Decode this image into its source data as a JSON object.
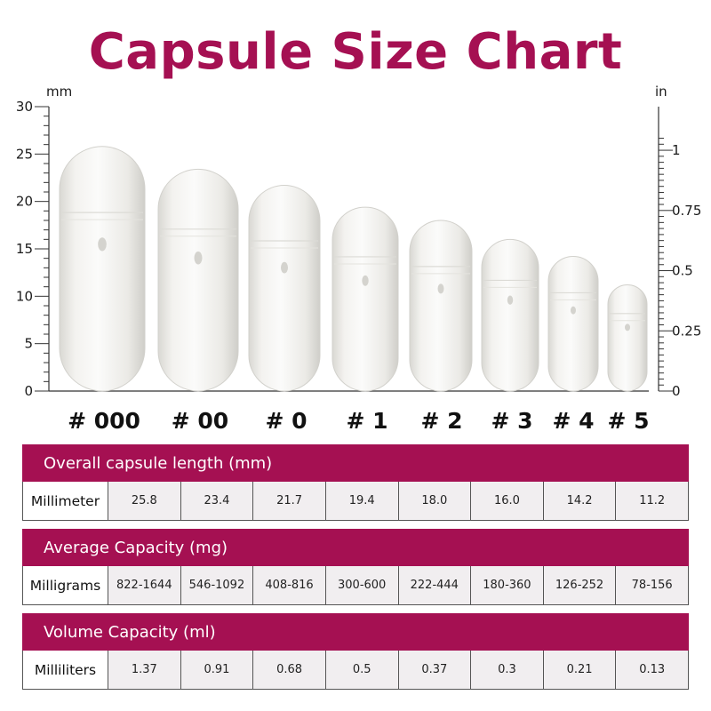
{
  "title": "Capsule Size Chart",
  "colors": {
    "accent": "#a51052",
    "capsule": "#f0efec",
    "cell_bg": "#f1eef0"
  },
  "chart_data": {
    "type": "bar",
    "categories": [
      "# 000",
      "# 00",
      "# 0",
      "# 1",
      "# 2",
      "# 3",
      "# 4",
      "# 5"
    ],
    "values": [
      25.8,
      23.4,
      21.7,
      19.4,
      18.0,
      16.0,
      14.2,
      11.2
    ],
    "left_axis": {
      "unit": "mm",
      "ylim": [
        0,
        30
      ],
      "ticks": [
        "0",
        "5",
        "10",
        "15",
        "20",
        "25",
        "30"
      ]
    },
    "right_axis": {
      "unit": "in",
      "ticks": [
        "0",
        "0.25",
        "0.5",
        "0.75",
        "1"
      ]
    },
    "grid": false
  },
  "tables": [
    {
      "header": "Overall capsule length (mm)",
      "row_label": "Millimeter",
      "values": [
        "25.8",
        "23.4",
        "21.7",
        "19.4",
        "18.0",
        "16.0",
        "14.2",
        "11.2"
      ]
    },
    {
      "header": "Average Capacity (mg)",
      "row_label": "Milligrams",
      "values": [
        "822-1644",
        "546-1092",
        "408-816",
        "300-600",
        "222-444",
        "180-360",
        "126-252",
        "78-156"
      ]
    },
    {
      "header": "Volume Capacity (ml)",
      "row_label": "Milliliters",
      "values": [
        "1.37",
        "0.91",
        "0.68",
        "0.5",
        "0.37",
        "0.3",
        "0.21",
        "0.13"
      ]
    }
  ]
}
